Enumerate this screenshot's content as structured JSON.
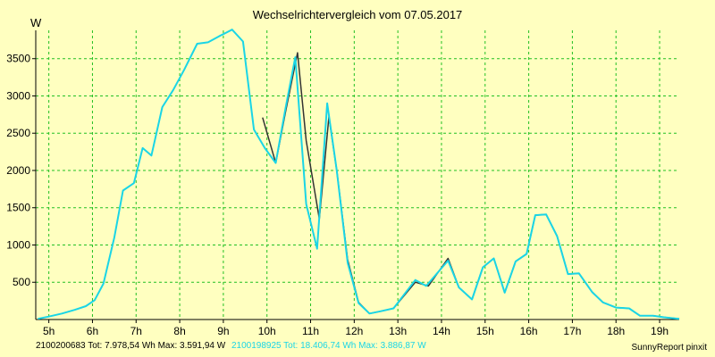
{
  "chart_data": {
    "type": "line",
    "title": "Wechselrichtervergleich vom 07.05.2017",
    "ylabel": "W",
    "xlabel": "",
    "x_ticks": [
      "5h",
      "6h",
      "7h",
      "8h",
      "9h",
      "10h",
      "11h",
      "12h",
      "13h",
      "14h",
      "15h",
      "16h",
      "17h",
      "18h",
      "19h"
    ],
    "x_tick_values": [
      5,
      6,
      7,
      8,
      9,
      10,
      11,
      12,
      13,
      14,
      15,
      16,
      17,
      18,
      19
    ],
    "y_ticks": [
      500,
      1000,
      1500,
      2000,
      2500,
      3000,
      3500
    ],
    "xlim": [
      4.7,
      19.45
    ],
    "ylim": [
      0,
      3880
    ],
    "grid": true,
    "series": [
      {
        "name": "2100200683",
        "color": "#333333",
        "points": [
          [
            9.9,
            2710
          ],
          [
            10.2,
            2100
          ],
          [
            10.43,
            2800
          ],
          [
            10.7,
            3580
          ],
          [
            10.9,
            2400
          ],
          [
            11.2,
            1350
          ],
          [
            11.42,
            2720
          ],
          [
            11.6,
            2000
          ],
          [
            11.85,
            800
          ],
          [
            12.1,
            230
          ],
          [
            12.35,
            80
          ],
          [
            12.6,
            110
          ],
          [
            12.9,
            150
          ],
          [
            13.4,
            500
          ],
          [
            13.7,
            450
          ],
          [
            14.15,
            820
          ],
          [
            14.4,
            430
          ],
          [
            14.7,
            270
          ],
          [
            14.95,
            700
          ],
          [
            15.2,
            820
          ],
          [
            15.45,
            360
          ],
          [
            15.7,
            780
          ],
          [
            15.95,
            880
          ],
          [
            16.15,
            1400
          ],
          [
            16.4,
            1410
          ],
          [
            16.65,
            1120
          ],
          [
            16.9,
            610
          ],
          [
            17.15,
            620
          ],
          [
            17.45,
            370
          ],
          [
            17.7,
            230
          ],
          [
            18.0,
            160
          ],
          [
            18.3,
            150
          ],
          [
            18.55,
            50
          ],
          [
            18.85,
            50
          ],
          [
            19.1,
            30
          ],
          [
            19.45,
            10
          ]
        ]
      },
      {
        "name": "2100198925",
        "color": "#1ad5e6",
        "points": [
          [
            4.75,
            10
          ],
          [
            5.0,
            40
          ],
          [
            5.3,
            80
          ],
          [
            5.6,
            130
          ],
          [
            5.85,
            180
          ],
          [
            6.05,
            260
          ],
          [
            6.25,
            480
          ],
          [
            6.5,
            1100
          ],
          [
            6.7,
            1730
          ],
          [
            6.95,
            1830
          ],
          [
            7.15,
            2300
          ],
          [
            7.35,
            2200
          ],
          [
            7.6,
            2850
          ],
          [
            7.85,
            3080
          ],
          [
            8.1,
            3350
          ],
          [
            8.4,
            3700
          ],
          [
            8.65,
            3720
          ],
          [
            8.9,
            3800
          ],
          [
            9.2,
            3890
          ],
          [
            9.45,
            3730
          ],
          [
            9.7,
            2550
          ],
          [
            9.95,
            2300
          ],
          [
            10.2,
            2100
          ],
          [
            10.43,
            2850
          ],
          [
            10.65,
            3520
          ],
          [
            10.9,
            1550
          ],
          [
            11.15,
            950
          ],
          [
            11.38,
            2900
          ],
          [
            11.6,
            2000
          ],
          [
            11.85,
            760
          ],
          [
            12.1,
            220
          ],
          [
            12.35,
            80
          ],
          [
            12.6,
            110
          ],
          [
            12.9,
            150
          ],
          [
            13.4,
            530
          ],
          [
            13.65,
            450
          ],
          [
            14.15,
            790
          ],
          [
            14.4,
            430
          ],
          [
            14.7,
            270
          ],
          [
            14.95,
            700
          ],
          [
            15.2,
            820
          ],
          [
            15.45,
            360
          ],
          [
            15.7,
            780
          ],
          [
            15.95,
            880
          ],
          [
            16.15,
            1400
          ],
          [
            16.4,
            1410
          ],
          [
            16.65,
            1120
          ],
          [
            16.9,
            610
          ],
          [
            17.15,
            620
          ],
          [
            17.45,
            370
          ],
          [
            17.7,
            230
          ],
          [
            18.0,
            160
          ],
          [
            18.3,
            150
          ],
          [
            18.55,
            50
          ],
          [
            18.85,
            50
          ],
          [
            19.1,
            30
          ],
          [
            19.45,
            10
          ]
        ]
      }
    ]
  },
  "footer": {
    "series1": "2100200683 Tot: 7.978,54 Wh Max: 3.591,94 W",
    "series2": "2100198925 Tot: 18.406,74 Wh Max: 3.886,87 W",
    "credit": "SunnyReport pinxit"
  }
}
